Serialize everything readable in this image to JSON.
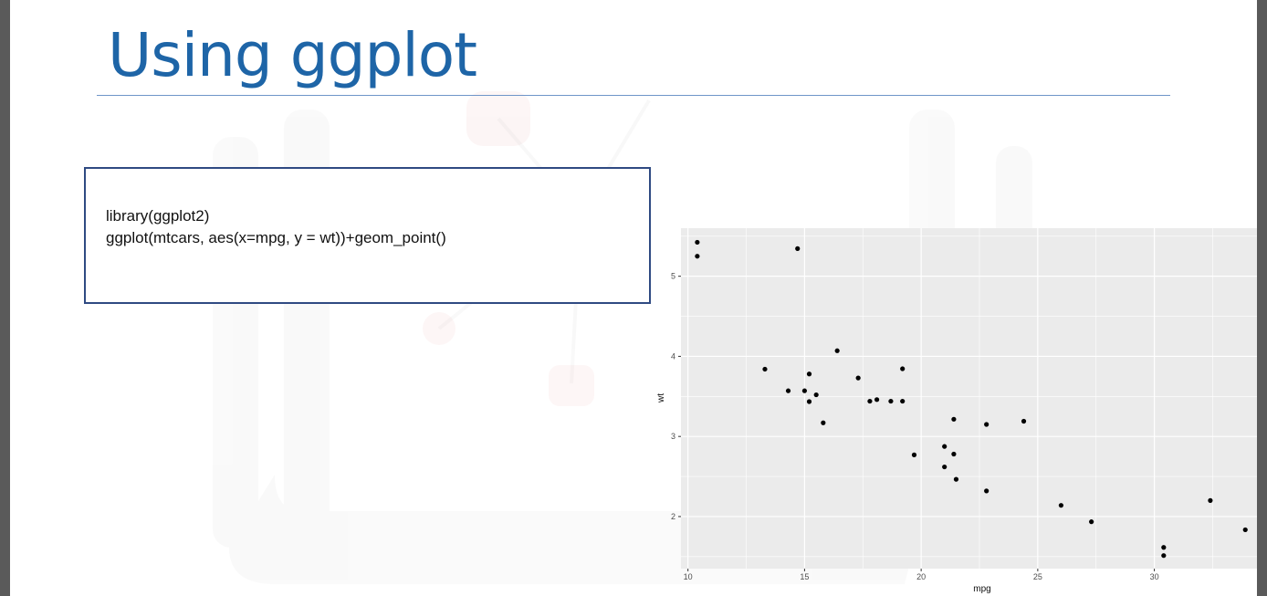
{
  "slide": {
    "title": "Using ggplot",
    "code_lines": [
      "library(ggplot2)",
      "ggplot(mtcars, aes(x=mpg, y = wt))+geom_point()"
    ]
  },
  "colors": {
    "title": "#1e65a7",
    "rule": "#6f95c9",
    "code_border": "#2f4a82",
    "panel_bg": "#ebebeb",
    "grid": "#ffffff",
    "point": "#000000"
  },
  "chart_data": {
    "type": "scatter",
    "title": "",
    "xlabel": "mpg",
    "ylabel": "wt",
    "xlim": [
      9.7,
      34.4
    ],
    "ylim": [
      1.35,
      5.6
    ],
    "x_ticks": [
      10,
      15,
      20,
      25,
      30
    ],
    "y_ticks": [
      2,
      3,
      4,
      5
    ],
    "grid": true,
    "legend": "none",
    "points": [
      {
        "x": 21.0,
        "y": 2.62
      },
      {
        "x": 21.0,
        "y": 2.875
      },
      {
        "x": 22.8,
        "y": 2.32
      },
      {
        "x": 21.4,
        "y": 3.215
      },
      {
        "x": 18.7,
        "y": 3.44
      },
      {
        "x": 18.1,
        "y": 3.46
      },
      {
        "x": 14.3,
        "y": 3.57
      },
      {
        "x": 24.4,
        "y": 3.19
      },
      {
        "x": 22.8,
        "y": 3.15
      },
      {
        "x": 19.2,
        "y": 3.44
      },
      {
        "x": 17.8,
        "y": 3.44
      },
      {
        "x": 16.4,
        "y": 4.07
      },
      {
        "x": 17.3,
        "y": 3.73
      },
      {
        "x": 15.2,
        "y": 3.78
      },
      {
        "x": 10.4,
        "y": 5.25
      },
      {
        "x": 10.4,
        "y": 5.424
      },
      {
        "x": 14.7,
        "y": 5.345
      },
      {
        "x": 32.4,
        "y": 2.2
      },
      {
        "x": 30.4,
        "y": 1.615
      },
      {
        "x": 33.9,
        "y": 1.835
      },
      {
        "x": 21.5,
        "y": 2.465
      },
      {
        "x": 15.5,
        "y": 3.52
      },
      {
        "x": 15.2,
        "y": 3.435
      },
      {
        "x": 13.3,
        "y": 3.84
      },
      {
        "x": 19.2,
        "y": 3.845
      },
      {
        "x": 27.3,
        "y": 1.935
      },
      {
        "x": 26.0,
        "y": 2.14
      },
      {
        "x": 30.4,
        "y": 1.513
      },
      {
        "x": 15.8,
        "y": 3.17
      },
      {
        "x": 19.7,
        "y": 2.77
      },
      {
        "x": 15.0,
        "y": 3.57
      },
      {
        "x": 21.4,
        "y": 2.78
      }
    ]
  }
}
